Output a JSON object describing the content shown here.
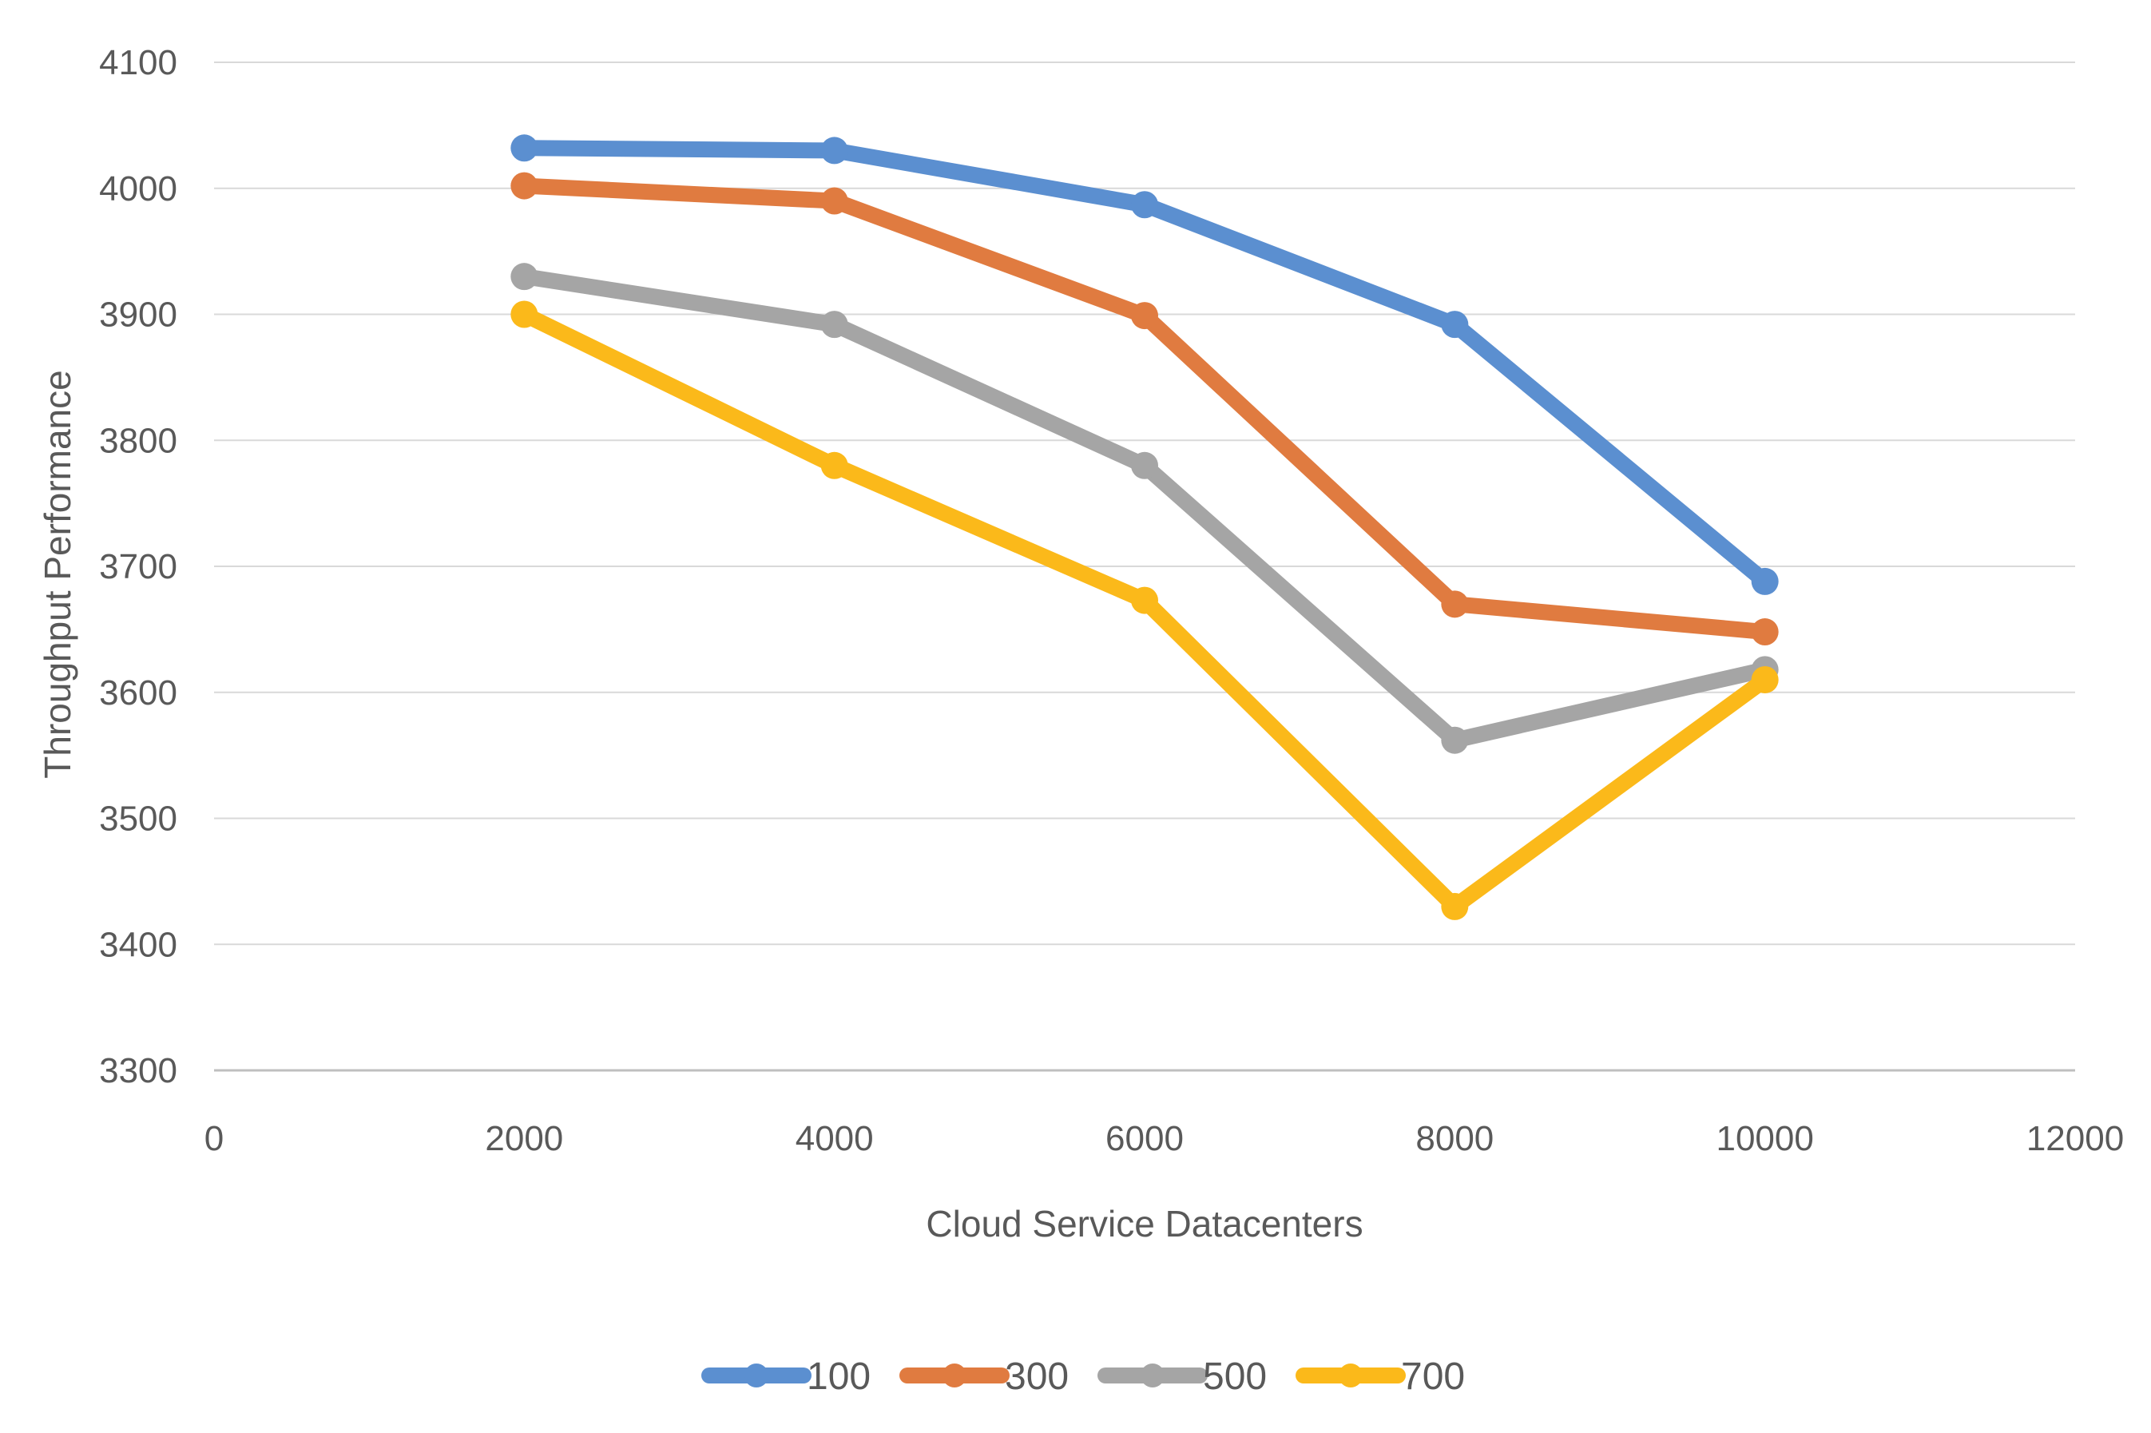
{
  "chart_data": {
    "type": "line",
    "title": "",
    "xlabel": "Cloud Service Datacenters",
    "ylabel": "Throughput Performance",
    "xlim": [
      0,
      12000
    ],
    "ylim": [
      3300,
      4100
    ],
    "x_ticks": [
      0,
      2000,
      4000,
      6000,
      8000,
      10000,
      12000
    ],
    "y_ticks": [
      3300,
      3400,
      3500,
      3600,
      3700,
      3800,
      3900,
      4000,
      4100
    ],
    "grid": "horizontal",
    "legend_position": "bottom",
    "x": [
      2000,
      4000,
      6000,
      8000,
      10000
    ],
    "series": [
      {
        "name": "100",
        "color": "#5b8fd0",
        "values": [
          4032,
          4030,
          3987,
          3892,
          3688
        ]
      },
      {
        "name": "300",
        "color": "#e07b40",
        "values": [
          4002,
          3990,
          3899,
          3670,
          3648
        ]
      },
      {
        "name": "500",
        "color": "#a5a5a5",
        "values": [
          3930,
          3892,
          3780,
          3562,
          3618
        ]
      },
      {
        "name": "700",
        "color": "#fbb91a",
        "values": [
          3900,
          3780,
          3673,
          3430,
          3610
        ]
      }
    ]
  }
}
